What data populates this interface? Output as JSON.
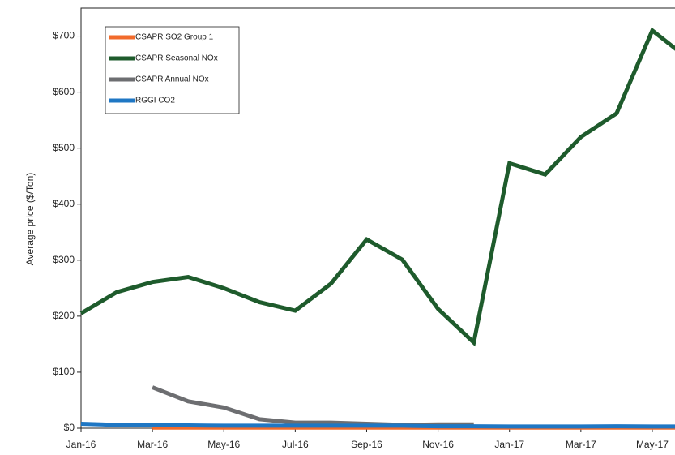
{
  "chart_data": {
    "type": "line",
    "y_label": "Average price ($/Ton)",
    "categories": [
      "Jan-16",
      null,
      "Mar-16",
      null,
      "May-16",
      null,
      "Jul-16",
      null,
      "Sep-16",
      null,
      "Nov-16",
      null,
      "Jan-17",
      null,
      "Mar-17",
      null,
      "May-17",
      null
    ],
    "series": [
      {
        "name": "CSAPR SO2 Group 1",
        "color": "#f26b2b",
        "values": [
          null,
          null,
          1,
          1,
          1,
          1,
          1,
          1,
          1,
          1,
          1,
          1,
          1,
          1,
          1,
          1,
          1,
          1
        ]
      },
      {
        "name": "CSAPR Seasonal NOx",
        "color": "#1e5b2c",
        "values": [
          205,
          243,
          261,
          270,
          250,
          225,
          210,
          258,
          337,
          301,
          213,
          153,
          473,
          453,
          520,
          562,
          710,
          660
        ]
      },
      {
        "name": "CSAPR Annual NOx",
        "color": "#6d6e71",
        "values": [
          null,
          null,
          73,
          48,
          37,
          16,
          10,
          10,
          8,
          6,
          7,
          7,
          null,
          null,
          null,
          null,
          null,
          null
        ]
      },
      {
        "name": "RGGI CO2",
        "color": "#1f77c4",
        "values": [
          8,
          6,
          5,
          5,
          4.5,
          4.5,
          4.5,
          4.5,
          4.5,
          4.5,
          3.5,
          3.5,
          3,
          3,
          3,
          3.5,
          3,
          3
        ]
      }
    ],
    "ylim": [
      0,
      750
    ],
    "yticks": [
      {
        "value": 0,
        "label": "$0"
      },
      {
        "value": 100,
        "label": "$100"
      },
      {
        "value": 200,
        "label": "$200"
      },
      {
        "value": 300,
        "label": "$300"
      },
      {
        "value": 400,
        "label": "$400"
      },
      {
        "value": 500,
        "label": "$500"
      },
      {
        "value": 600,
        "label": "$600"
      },
      {
        "value": 700,
        "label": "$700"
      }
    ],
    "legend": "upper-left"
  }
}
